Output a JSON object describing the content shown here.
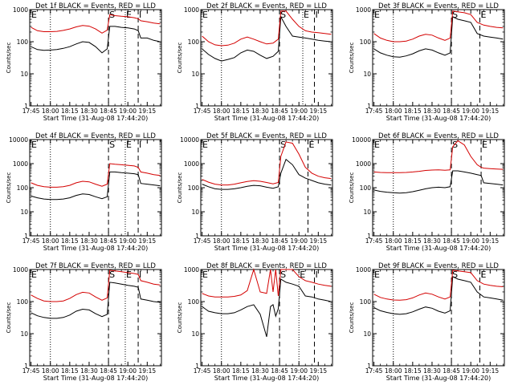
{
  "figure": {
    "x_tick_labels": [
      "17:45",
      "18:00",
      "18:15",
      "18:30",
      "18:45",
      "19:00",
      "19:15"
    ],
    "y_tick_labels": [
      "1",
      "10",
      "100",
      "1000",
      "10000"
    ],
    "xlabel": "Start Time (31-Aug-08 17:44:20)",
    "ylabel": "Counts/sec",
    "marker_labels": [
      "E",
      "S",
      "E",
      "I"
    ],
    "series_colors": {
      "events": "#000000",
      "lld": "#d40000"
    }
  },
  "chart_data": [
    {
      "type": "line",
      "title": "Det 1f BLACK = Events, RED = LLD",
      "xlabel": "Start Time (31-Aug-08 17:44:20)",
      "ylabel": "Counts/sec",
      "xlim": [
        "17:44",
        "19:26"
      ],
      "ylim": [
        1,
        1000
      ],
      "yscale": "log",
      "marker_lines": {
        "dotted": [
          "18:00",
          "18:58"
        ],
        "dashed": [
          "18:45",
          "19:08"
        ]
      },
      "x": [
        "17:45",
        "17:50",
        "17:55",
        "18:00",
        "18:05",
        "18:10",
        "18:15",
        "18:20",
        "18:25",
        "18:30",
        "18:35",
        "18:40",
        "18:44",
        "18:46",
        "18:50",
        "18:55",
        "19:00",
        "19:05",
        "19:08",
        "19:10",
        "19:15",
        "19:20",
        "19:25"
      ],
      "series": [
        {
          "values": [
            70,
            57,
            54,
            55,
            57,
            62,
            70,
            85,
            100,
            95,
            70,
            45,
            60,
            300,
            300,
            280,
            270,
            250,
            220,
            130,
            130,
            110,
            100
          ]
        },
        {
          "values": [
            280,
            220,
            205,
            205,
            210,
            225,
            250,
            290,
            320,
            305,
            250,
            185,
            230,
            700,
            650,
            620,
            600,
            560,
            520,
            450,
            420,
            380,
            360
          ]
        }
      ]
    },
    {
      "type": "line",
      "title": "Det 2f BLACK = Events, RED = LLD",
      "xlabel": "Start Time (31-Aug-08 17:44:20)",
      "ylabel": "Counts/sec",
      "xlim": [
        "17:44",
        "19:26"
      ],
      "ylim": [
        1,
        1000
      ],
      "yscale": "log",
      "marker_lines": {
        "dotted": [
          "18:00",
          "19:03"
        ],
        "dashed": [
          "18:45",
          "19:12"
        ]
      },
      "x": [
        "17:45",
        "17:50",
        "17:55",
        "18:00",
        "18:05",
        "18:10",
        "18:15",
        "18:20",
        "18:25",
        "18:30",
        "18:35",
        "18:40",
        "18:44",
        "18:46",
        "18:50",
        "18:55",
        "19:00",
        "19:05",
        "19:10",
        "19:15",
        "19:20",
        "19:25"
      ],
      "series": [
        {
          "values": [
            60,
            40,
            30,
            25,
            28,
            32,
            45,
            55,
            50,
            38,
            30,
            35,
            50,
            600,
            300,
            150,
            140,
            130,
            120,
            110,
            105,
            100
          ]
        },
        {
          "values": [
            150,
            100,
            80,
            75,
            78,
            90,
            120,
            140,
            120,
            100,
            85,
            90,
            120,
            900,
            900,
            500,
            300,
            220,
            200,
            190,
            180,
            170
          ]
        }
      ]
    },
    {
      "type": "line",
      "title": "Det 3f BLACK = Events, RED = LLD",
      "xlabel": "Start Time (31-Aug-08 17:44:20)",
      "ylabel": "Counts/sec",
      "xlim": [
        "17:44",
        "19:26"
      ],
      "ylim": [
        1,
        1000
      ],
      "yscale": "log",
      "marker_lines": {
        "dotted": [
          "18:00"
        ],
        "dashed": [
          "18:45",
          "19:07"
        ]
      },
      "x": [
        "17:45",
        "17:50",
        "17:55",
        "18:00",
        "18:05",
        "18:10",
        "18:15",
        "18:20",
        "18:25",
        "18:30",
        "18:35",
        "18:40",
        "18:44",
        "18:46",
        "18:50",
        "18:55",
        "19:00",
        "19:05",
        "19:10",
        "19:15",
        "19:20",
        "19:25"
      ],
      "series": [
        {
          "values": [
            60,
            45,
            38,
            34,
            33,
            36,
            42,
            52,
            60,
            55,
            45,
            38,
            45,
            600,
            500,
            450,
            400,
            180,
            150,
            140,
            130,
            120
          ]
        },
        {
          "values": [
            180,
            130,
            110,
            100,
            100,
            105,
            120,
            150,
            170,
            160,
            130,
            110,
            130,
            900,
            850,
            800,
            700,
            400,
            330,
            300,
            280,
            270
          ]
        }
      ]
    },
    {
      "type": "line",
      "title": "Det 4f BLACK = Events, RED = LLD",
      "xlabel": "Start Time (31-Aug-08 17:44:20)",
      "ylabel": "Counts/sec",
      "xlim": [
        "17:44",
        "19:26"
      ],
      "ylim": [
        1,
        10000
      ],
      "yscale": "log",
      "marker_lines": {
        "dotted": [
          "18:00",
          "18:58"
        ],
        "dashed": [
          "18:45",
          "19:08"
        ]
      },
      "x": [
        "17:45",
        "17:50",
        "17:55",
        "18:00",
        "18:05",
        "18:10",
        "18:15",
        "18:20",
        "18:25",
        "18:30",
        "18:35",
        "18:40",
        "18:44",
        "18:46",
        "18:50",
        "18:55",
        "19:00",
        "19:05",
        "19:08",
        "19:10",
        "19:15",
        "19:20",
        "19:25"
      ],
      "series": [
        {
          "values": [
            45,
            38,
            34,
            32,
            32,
            34,
            38,
            48,
            55,
            52,
            42,
            35,
            42,
            450,
            450,
            420,
            400,
            380,
            350,
            150,
            140,
            130,
            120
          ]
        },
        {
          "values": [
            160,
            125,
            110,
            105,
            105,
            110,
            125,
            160,
            185,
            175,
            140,
            115,
            140,
            1000,
            950,
            900,
            850,
            800,
            700,
            450,
            400,
            350,
            320
          ]
        }
      ]
    },
    {
      "type": "line",
      "title": "Det 5f BLACK = Events, RED = LLD",
      "xlabel": "Start Time (31-Aug-08 17:44:20)",
      "ylabel": "Counts/sec",
      "xlim": [
        "17:44",
        "19:26"
      ],
      "ylim": [
        1,
        10000
      ],
      "yscale": "log",
      "marker_lines": {
        "dotted": [
          "18:00"
        ],
        "dashed": [
          "18:45",
          "19:07"
        ]
      },
      "x": [
        "17:45",
        "17:50",
        "17:55",
        "18:00",
        "18:05",
        "18:10",
        "18:15",
        "18:20",
        "18:25",
        "18:30",
        "18:35",
        "18:40",
        "18:44",
        "18:46",
        "18:50",
        "18:55",
        "19:00",
        "19:05",
        "19:10",
        "19:15",
        "19:20",
        "19:25"
      ],
      "series": [
        {
          "values": [
            140,
            110,
            90,
            85,
            85,
            90,
            100,
            115,
            125,
            120,
            105,
            95,
            110,
            400,
            1500,
            900,
            350,
            250,
            200,
            160,
            140,
            130
          ]
        },
        {
          "values": [
            220,
            170,
            140,
            130,
            130,
            140,
            160,
            180,
            195,
            185,
            165,
            145,
            165,
            2000,
            8000,
            7000,
            2500,
            700,
            400,
            300,
            260,
            240
          ]
        }
      ]
    },
    {
      "type": "line",
      "title": "Det 6f BLACK = Events, RED = LLD",
      "xlabel": "Start Time (31-Aug-08 17:44:20)",
      "ylabel": "Counts/sec",
      "xlim": [
        "17:44",
        "19:26"
      ],
      "ylim": [
        1,
        10000
      ],
      "yscale": "log",
      "marker_lines": {
        "dotted": [
          "18:00"
        ],
        "dashed": [
          "18:45",
          "19:08"
        ]
      },
      "x": [
        "17:45",
        "17:50",
        "17:55",
        "18:00",
        "18:05",
        "18:10",
        "18:15",
        "18:20",
        "18:25",
        "18:30",
        "18:35",
        "18:40",
        "18:44",
        "18:46",
        "18:50",
        "18:55",
        "19:00",
        "19:05",
        "19:08",
        "19:10",
        "19:15",
        "19:20",
        "19:25"
      ],
      "series": [
        {
          "values": [
            80,
            70,
            65,
            62,
            60,
            62,
            68,
            78,
            90,
            100,
            105,
            100,
            110,
            500,
            500,
            450,
            400,
            350,
            320,
            160,
            150,
            140,
            130
          ]
        },
        {
          "values": [
            450,
            430,
            420,
            420,
            420,
            430,
            450,
            480,
            520,
            540,
            550,
            530,
            550,
            5000,
            9000,
            6000,
            2000,
            900,
            700,
            650,
            620,
            600,
            580
          ]
        }
      ]
    },
    {
      "type": "line",
      "title": "Det 7f BLACK = Events, RED = LLD",
      "xlabel": "Start Time (31-Aug-08 17:44:20)",
      "ylabel": "Counts/sec",
      "xlim": [
        "17:44",
        "19:26"
      ],
      "ylim": [
        1,
        1000
      ],
      "yscale": "log",
      "marker_lines": {
        "dotted": [
          "18:00",
          "18:58"
        ],
        "dashed": [
          "18:45",
          "19:08"
        ]
      },
      "x": [
        "17:45",
        "17:50",
        "17:55",
        "18:00",
        "18:05",
        "18:10",
        "18:15",
        "18:20",
        "18:25",
        "18:30",
        "18:35",
        "18:40",
        "18:44",
        "18:46",
        "18:50",
        "18:55",
        "19:00",
        "19:05",
        "19:08",
        "19:10",
        "19:15",
        "19:20",
        "19:25"
      ],
      "series": [
        {
          "values": [
            45,
            36,
            32,
            30,
            30,
            32,
            38,
            50,
            58,
            55,
            42,
            34,
            40,
            400,
            380,
            350,
            320,
            300,
            280,
            120,
            110,
            100,
            95
          ]
        },
        {
          "values": [
            160,
            125,
            105,
            100,
            100,
            105,
            125,
            165,
            195,
            185,
            140,
            110,
            130,
            950,
            900,
            850,
            800,
            750,
            700,
            450,
            400,
            350,
            330
          ]
        }
      ]
    },
    {
      "type": "line",
      "title": "Det 8f BLACK = Events, RED = LLD",
      "xlabel": "Start Time (31-Aug-08 17:44:20)",
      "ylabel": "Counts/sec",
      "xlim": [
        "17:44",
        "19:26"
      ],
      "ylim": [
        1,
        1000
      ],
      "yscale": "log",
      "marker_lines": {
        "dotted": [
          "18:00",
          "19:00"
        ],
        "dashed": [
          "18:45",
          "19:12"
        ]
      },
      "x": [
        "17:45",
        "17:50",
        "17:55",
        "18:00",
        "18:05",
        "18:10",
        "18:15",
        "18:20",
        "18:25",
        "18:30",
        "18:35",
        "18:38",
        "18:40",
        "18:42",
        "18:44",
        "18:46",
        "18:50",
        "18:55",
        "19:00",
        "19:05",
        "19:10",
        "19:15",
        "19:20",
        "19:25"
      ],
      "series": [
        {
          "values": [
            70,
            50,
            45,
            42,
            42,
            45,
            55,
            70,
            80,
            40,
            8,
            70,
            80,
            35,
            60,
            500,
            400,
            350,
            300,
            150,
            140,
            120,
            110,
            100
          ]
        },
        {
          "values": [
            180,
            150,
            140,
            140,
            140,
            145,
            160,
            220,
            1000,
            200,
            180,
            1000,
            200,
            1000,
            150,
            1000,
            1000,
            1000,
            600,
            450,
            400,
            350,
            320,
            300
          ]
        }
      ]
    },
    {
      "type": "line",
      "title": "Det 9f BLACK = Events, RED = LLD",
      "xlabel": "Start Time (31-Aug-08 17:44:20)",
      "ylabel": "Counts/sec",
      "xlim": [
        "17:44",
        "19:26"
      ],
      "ylim": [
        1,
        1000
      ],
      "yscale": "log",
      "marker_lines": {
        "dotted": [
          "18:00"
        ],
        "dashed": [
          "18:45",
          "19:07"
        ]
      },
      "x": [
        "17:45",
        "17:50",
        "17:55",
        "18:00",
        "18:05",
        "18:10",
        "18:15",
        "18:20",
        "18:25",
        "18:30",
        "18:35",
        "18:40",
        "18:44",
        "18:46",
        "18:50",
        "18:55",
        "19:00",
        "19:05",
        "19:10",
        "19:15",
        "19:20",
        "19:25"
      ],
      "series": [
        {
          "values": [
            65,
            52,
            46,
            42,
            40,
            42,
            48,
            58,
            68,
            62,
            50,
            44,
            52,
            600,
            500,
            450,
            400,
            200,
            140,
            130,
            120,
            110
          ]
        },
        {
          "values": [
            170,
            135,
            120,
            112,
            110,
            115,
            130,
            160,
            185,
            170,
            140,
            120,
            140,
            950,
            900,
            850,
            800,
            450,
            350,
            320,
            300,
            290
          ]
        }
      ]
    }
  ]
}
